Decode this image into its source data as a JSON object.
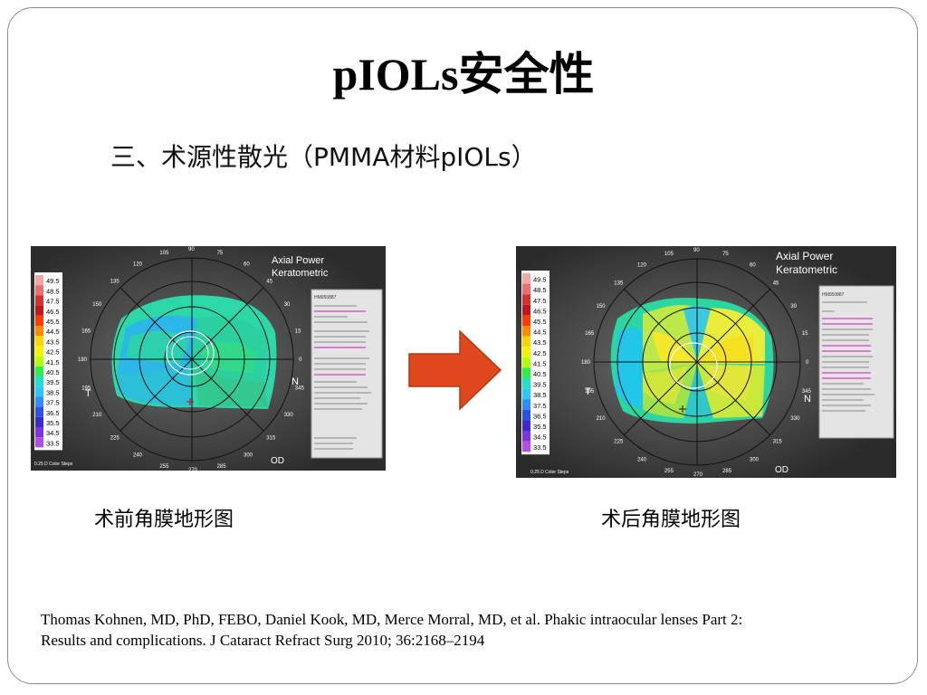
{
  "slide": {
    "title": "pIOLs安全性",
    "subtitle": "三、术源性散光（PMMA材料pIOLs）",
    "captions": {
      "pre": "术前角膜地形图",
      "post": "术后角膜地形图"
    },
    "reference": {
      "line1": "Thomas Kohnen, MD, PhD, FEBO, Daniel Kook, MD, Merce Morral, MD, et al. Phakic intraocular lenses Part 2:",
      "line2": "Results and  complications. J Cataract Refract Surg 2010; 36:2168–2194"
    }
  },
  "maps": {
    "pre": {
      "header1": "Axial Power",
      "header2": "Keratometric",
      "left_label": "T",
      "right_label": "N",
      "eye_label": "OD",
      "step_label": "0.25 D Color Steps",
      "patient_id": "HM050887"
    },
    "post": {
      "header1": "Axial Power",
      "header2": "Keratometric",
      "left_label": "T",
      "right_label": "N",
      "eye_label": "OD",
      "step_label": "0.25 D Color Steps",
      "patient_id": "HM050887"
    },
    "color_scale": [
      "49.5",
      "48.5",
      "47.5",
      "46.5",
      "45.5",
      "44.5",
      "43.5",
      "42.5",
      "41.5",
      "40.5",
      "39.5",
      "38.5",
      "37.5",
      "36.5",
      "35.5",
      "34.5",
      "33.5"
    ],
    "scale_colors": [
      "#f3a6a6",
      "#e87070",
      "#d83030",
      "#c01818",
      "#ff3b00",
      "#ff8a00",
      "#ffd200",
      "#f4f400",
      "#b4ff00",
      "#2cf046",
      "#22e0c8",
      "#28c8ff",
      "#2f8cff",
      "#2c52e8",
      "#3a2ad0",
      "#7a34e0",
      "#b44ce8"
    ],
    "tick_labels": [
      "15",
      "30",
      "45",
      "60",
      "75",
      "90",
      "105",
      "120",
      "135",
      "150",
      "165",
      "180",
      "195",
      "210",
      "225",
      "240",
      "255",
      "270",
      "285",
      "300",
      "315",
      "330",
      "345",
      "0"
    ]
  },
  "colors": {
    "arrow": "#e0471c",
    "arrow_stroke": "#b03810"
  }
}
